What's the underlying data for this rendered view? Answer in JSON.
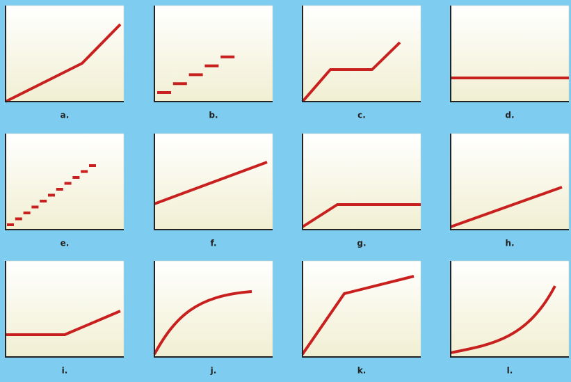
{
  "panels": [
    {
      "label": "a."
    },
    {
      "label": "b."
    },
    {
      "label": "c."
    },
    {
      "label": "d."
    },
    {
      "label": "e."
    },
    {
      "label": "f."
    },
    {
      "label": "g."
    },
    {
      "label": "h."
    },
    {
      "label": "i."
    },
    {
      "label": "j."
    },
    {
      "label": "k."
    },
    {
      "label": "l."
    }
  ]
}
